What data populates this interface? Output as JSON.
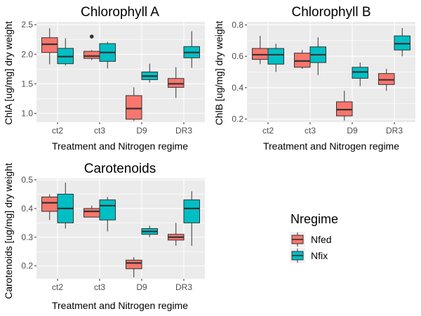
{
  "chart_data": [
    {
      "type": "box",
      "title": "Chlorophyll A",
      "xlabel": "Treatment and Nitrogen regime",
      "ylabel": "ChlA [ug/mg] dry weight",
      "categories": [
        "ct2",
        "ct3",
        "D9",
        "DR3"
      ],
      "ylim": [
        0.85,
        2.55
      ],
      "yticks": [
        "1.0",
        "1.5",
        "2.0",
        "2.5"
      ],
      "series": [
        {
          "name": "Nfed",
          "boxes": [
            {
              "min": 1.83,
              "q1": 2.03,
              "median": 2.17,
              "q3": 2.28,
              "max": 2.44,
              "outliers": []
            },
            {
              "min": 1.9,
              "q1": 1.93,
              "median": 1.97,
              "q3": 2.05,
              "max": 2.07,
              "outliers": [
                2.3
              ]
            },
            {
              "min": 0.87,
              "q1": 0.9,
              "median": 1.08,
              "q3": 1.3,
              "max": 1.44,
              "outliers": []
            },
            {
              "min": 1.26,
              "q1": 1.44,
              "median": 1.5,
              "q3": 1.59,
              "max": 1.78,
              "outliers": []
            }
          ]
        },
        {
          "name": "Nfix",
          "boxes": [
            {
              "min": 1.81,
              "q1": 1.84,
              "median": 1.96,
              "q3": 2.1,
              "max": 2.27,
              "outliers": []
            },
            {
              "min": 1.76,
              "q1": 1.88,
              "median": 2.03,
              "q3": 2.18,
              "max": 2.21,
              "outliers": []
            },
            {
              "min": 1.52,
              "q1": 1.57,
              "median": 1.63,
              "q3": 1.7,
              "max": 1.84,
              "outliers": []
            },
            {
              "min": 1.77,
              "q1": 1.94,
              "median": 2.03,
              "q3": 2.13,
              "max": 2.39,
              "outliers": []
            }
          ]
        }
      ]
    },
    {
      "type": "box",
      "title": "Chlorophyll B",
      "xlabel": "Treatment and Nitrogen regime",
      "ylabel": "ChlB [ug/mg] dry weight",
      "categories": [
        "ct2",
        "ct3",
        "D9",
        "DR3"
      ],
      "ylim": [
        0.18,
        0.82
      ],
      "yticks": [
        "0.2",
        "0.4",
        "0.6",
        "0.8"
      ],
      "series": [
        {
          "name": "Nfed",
          "boxes": [
            {
              "min": 0.55,
              "q1": 0.58,
              "median": 0.61,
              "q3": 0.65,
              "max": 0.73,
              "outliers": []
            },
            {
              "min": 0.52,
              "q1": 0.53,
              "median": 0.57,
              "q3": 0.62,
              "max": 0.64,
              "outliers": []
            },
            {
              "min": 0.19,
              "q1": 0.22,
              "median": 0.26,
              "q3": 0.31,
              "max": 0.38,
              "outliers": []
            },
            {
              "min": 0.38,
              "q1": 0.42,
              "median": 0.45,
              "q3": 0.49,
              "max": 0.52,
              "outliers": []
            }
          ]
        },
        {
          "name": "Nfix",
          "boxes": [
            {
              "min": 0.5,
              "q1": 0.55,
              "median": 0.61,
              "q3": 0.65,
              "max": 0.68,
              "outliers": []
            },
            {
              "min": 0.48,
              "q1": 0.56,
              "median": 0.61,
              "q3": 0.66,
              "max": 0.72,
              "outliers": []
            },
            {
              "min": 0.41,
              "q1": 0.46,
              "median": 0.5,
              "q3": 0.53,
              "max": 0.56,
              "outliers": []
            },
            {
              "min": 0.6,
              "q1": 0.64,
              "median": 0.68,
              "q3": 0.73,
              "max": 0.78,
              "outliers": []
            }
          ]
        }
      ]
    },
    {
      "type": "box",
      "title": "Carotenoids",
      "xlabel": "Treatment and Nitrogen regime",
      "ylabel": "Carotenoids [ug/mg] dry weight",
      "categories": [
        "ct2",
        "ct3",
        "D9",
        "DR3"
      ],
      "ylim": [
        0.155,
        0.505
      ],
      "yticks": [
        "0.2",
        "0.3",
        "0.4",
        "0.5"
      ],
      "series": [
        {
          "name": "Nfed",
          "boxes": [
            {
              "min": 0.36,
              "q1": 0.39,
              "median": 0.42,
              "q3": 0.44,
              "max": 0.45,
              "outliers": []
            },
            {
              "min": 0.37,
              "q1": 0.37,
              "median": 0.39,
              "q3": 0.4,
              "max": 0.41,
              "outliers": []
            },
            {
              "min": 0.16,
              "q1": 0.19,
              "median": 0.21,
              "q3": 0.22,
              "max": 0.23,
              "outliers": []
            },
            {
              "min": 0.27,
              "q1": 0.29,
              "median": 0.3,
              "q3": 0.31,
              "max": 0.35,
              "outliers": []
            }
          ]
        },
        {
          "name": "Nfix",
          "boxes": [
            {
              "min": 0.33,
              "q1": 0.35,
              "median": 0.4,
              "q3": 0.45,
              "max": 0.49,
              "outliers": []
            },
            {
              "min": 0.32,
              "q1": 0.36,
              "median": 0.41,
              "q3": 0.43,
              "max": 0.44,
              "outliers": []
            },
            {
              "min": 0.3,
              "q1": 0.31,
              "median": 0.32,
              "q3": 0.33,
              "max": 0.34,
              "outliers": []
            },
            {
              "min": 0.27,
              "q1": 0.35,
              "median": 0.4,
              "q3": 0.43,
              "max": 0.46,
              "outliers": []
            }
          ]
        }
      ]
    }
  ],
  "legend": {
    "title": "Nregime",
    "items": [
      {
        "label": "Nfed",
        "color": "#F8766D"
      },
      {
        "label": "Nfix",
        "color": "#00BFC4"
      }
    ]
  }
}
